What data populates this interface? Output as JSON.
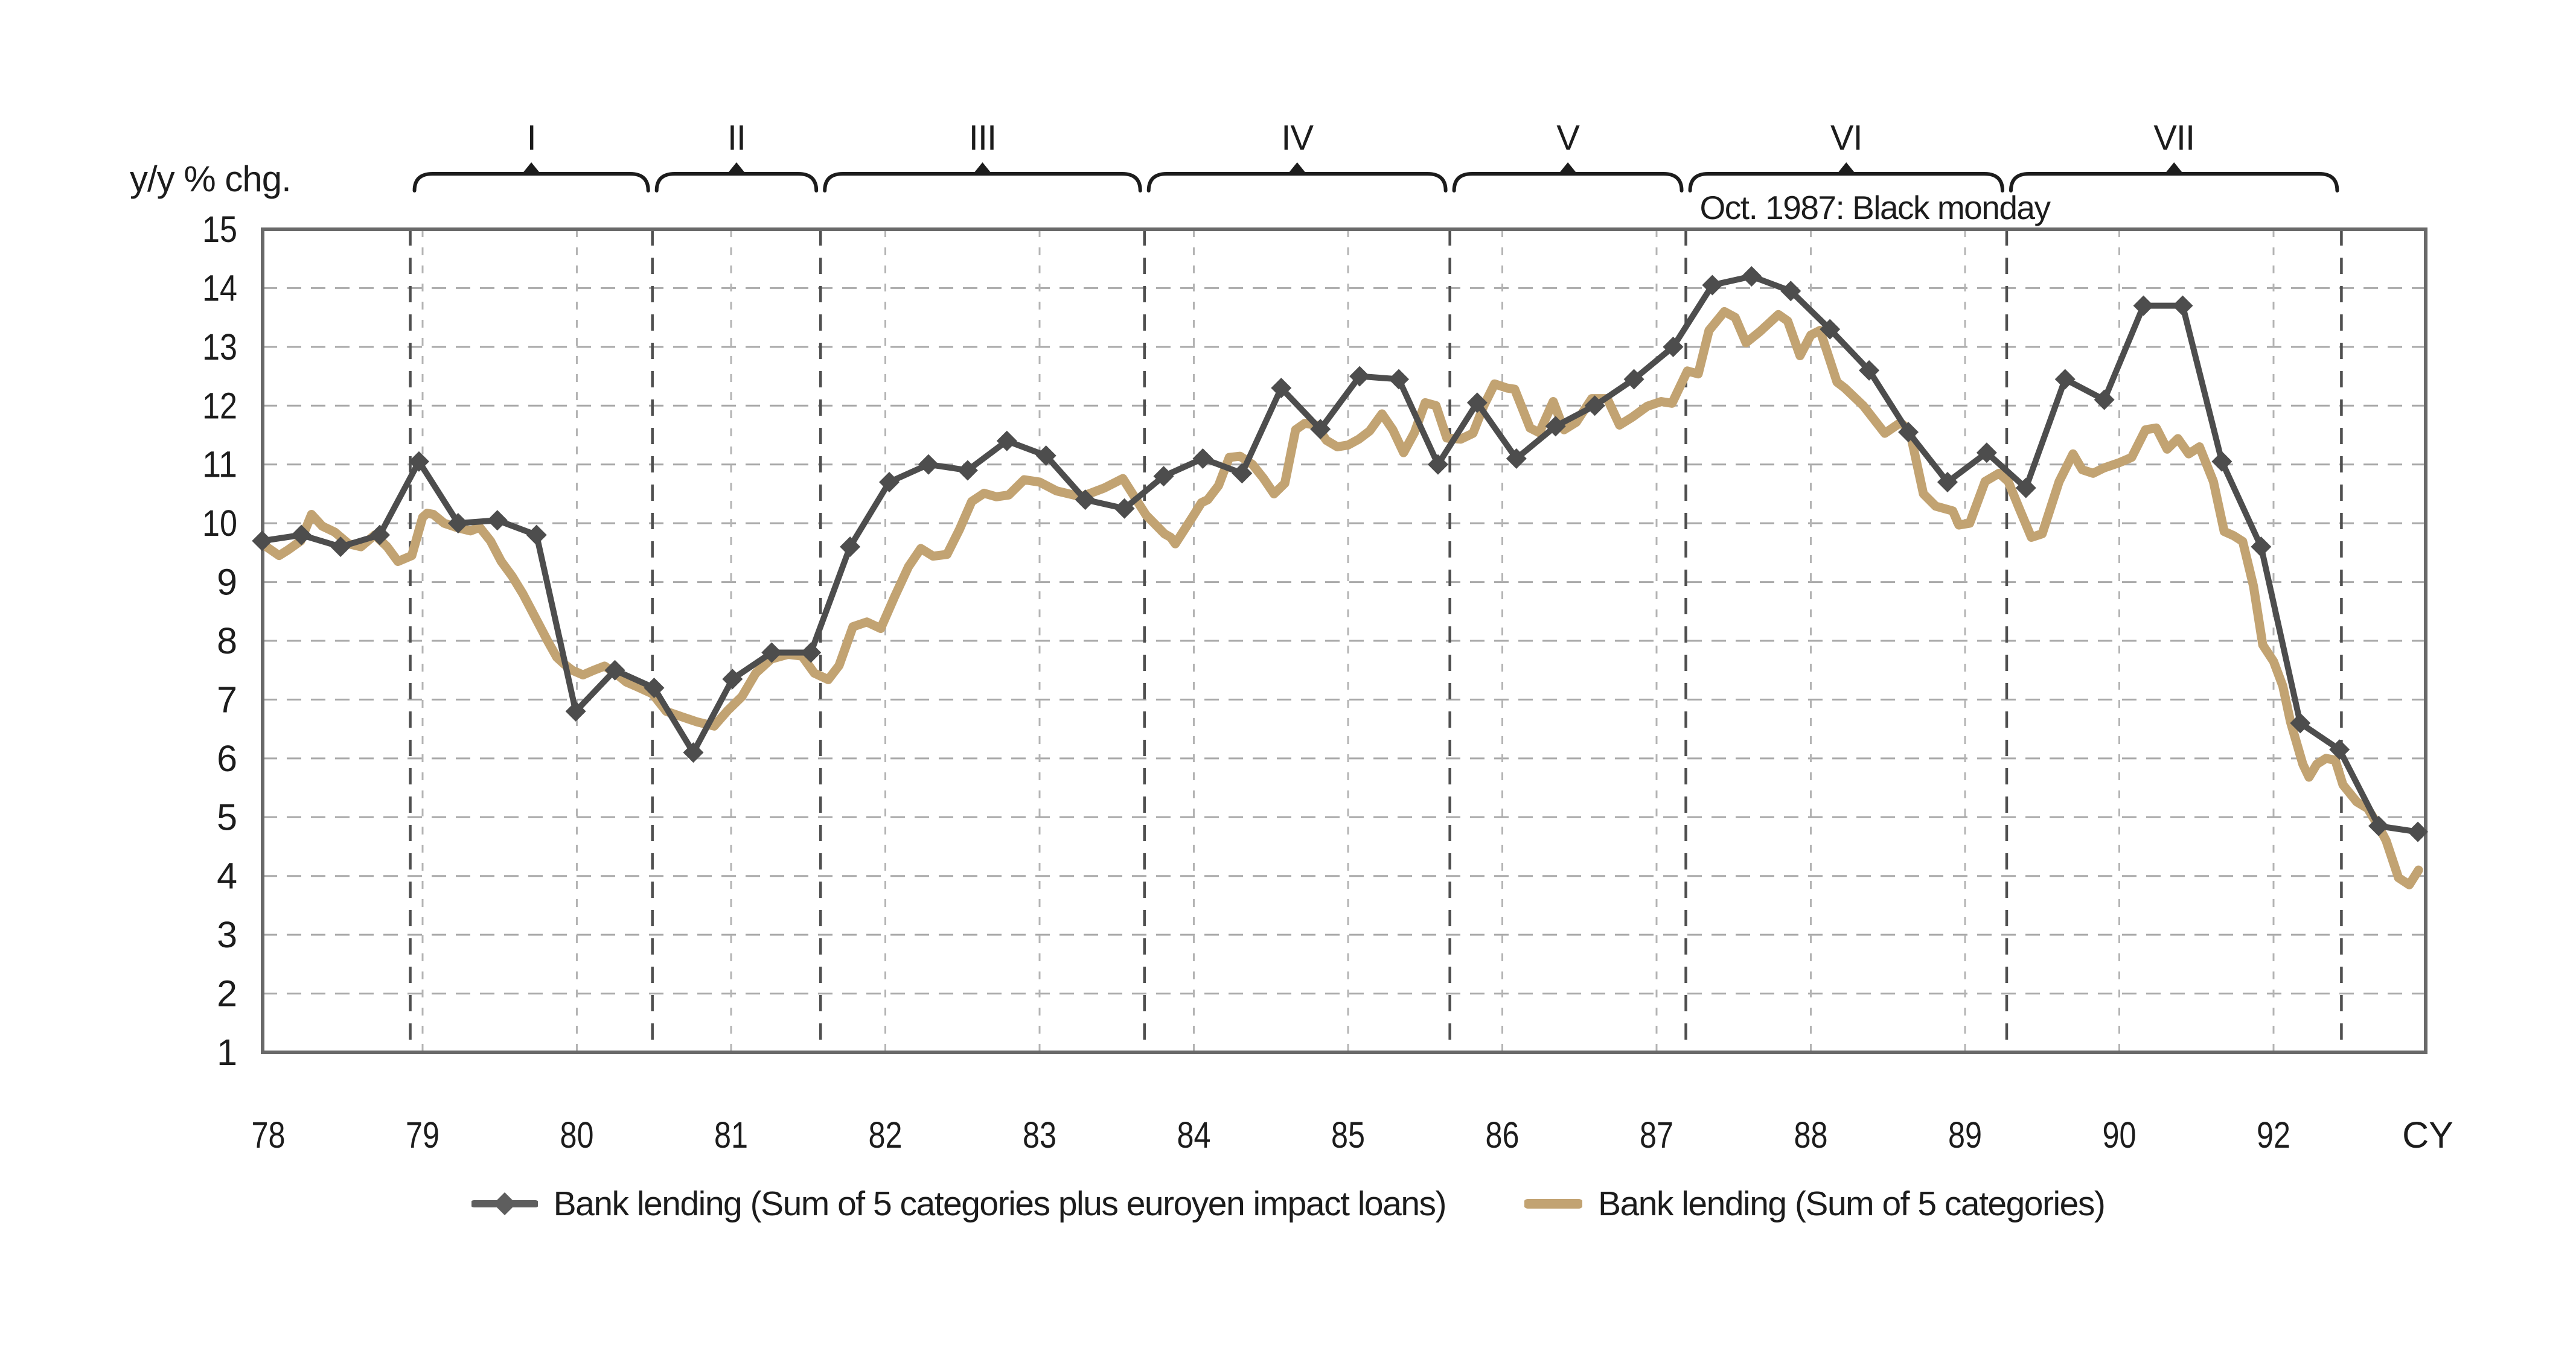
{
  "y_axis_title": "y/y % chg.",
  "legend": {
    "item1": "Bank lending (Sum of 5 categories plus euroyen impact loans)",
    "item2": "Bank lending (Sum of 5 categories)"
  },
  "chart_data": {
    "type": "line",
    "title": "",
    "ylabel": "y/y % chg.",
    "xlabel": "CY",
    "ylim": [
      1,
      15
    ],
    "y_ticks": [
      1,
      2,
      3,
      4,
      5,
      6,
      7,
      8,
      9,
      10,
      11,
      12,
      13,
      14,
      15
    ],
    "grid": "dashed horizontal + dashed vertical year lines",
    "legend_position": "bottom",
    "x_axis": {
      "note": "pos is axis position in evenly-spaced label units; label 92 sits one unit after 90 on this chart",
      "ticks": [
        {
          "pos": 78,
          "label": "78",
          "line": false
        },
        {
          "pos": 79,
          "label": "79",
          "line": true
        },
        {
          "pos": 80,
          "label": "80",
          "line": true
        },
        {
          "pos": 81,
          "label": "81",
          "line": true
        },
        {
          "pos": 82,
          "label": "82",
          "line": true
        },
        {
          "pos": 83,
          "label": "83",
          "line": true
        },
        {
          "pos": 84,
          "label": "84",
          "line": true
        },
        {
          "pos": 85,
          "label": "85",
          "line": true
        },
        {
          "pos": 86,
          "label": "86",
          "line": true
        },
        {
          "pos": 87,
          "label": "87",
          "line": true
        },
        {
          "pos": 88,
          "label": "88",
          "line": true
        },
        {
          "pos": 89,
          "label": "89",
          "line": true
        },
        {
          "pos": 90,
          "label": "90",
          "line": true
        },
        {
          "pos": 91,
          "label": "92",
          "line": true
        },
        {
          "pos": 92,
          "label": "CY",
          "line": false
        }
      ]
    },
    "periods": [
      {
        "label": "I",
        "from": 78.92,
        "to": 80.49
      },
      {
        "label": "II",
        "from": 80.49,
        "to": 81.58
      },
      {
        "label": "III",
        "from": 81.58,
        "to": 83.68
      },
      {
        "label": "IV",
        "from": 83.68,
        "to": 85.66
      },
      {
        "label": "V",
        "from": 85.66,
        "to": 87.19
      },
      {
        "label": "VI",
        "from": 87.19,
        "to": 89.27
      },
      {
        "label": "VII",
        "from": 89.27,
        "to": 91.44
      }
    ],
    "annotation": {
      "text": "Oct. 1987: Black monday",
      "pos": 87.28,
      "value_y": "above plot, under brace row"
    },
    "series": [
      {
        "name": "Bank lending (Sum of 5 categories plus euroyen impact loans)",
        "color": "#4d4d4d",
        "marker": "diamond",
        "t_start": 77.96,
        "t_step": 0.2541,
        "values": [
          9.7,
          9.8,
          9.6,
          9.8,
          11.05,
          10.0,
          10.05,
          9.8,
          6.8,
          7.5,
          7.2,
          6.1,
          7.35,
          7.8,
          7.8,
          9.6,
          10.7,
          11.0,
          10.9,
          11.4,
          11.15,
          10.4,
          10.25,
          10.8,
          11.1,
          10.85,
          12.3,
          11.6,
          12.5,
          12.45,
          11.0,
          12.05,
          11.1,
          11.65,
          12.0,
          12.45,
          13.0,
          14.05,
          14.2,
          13.95,
          13.3,
          12.6,
          11.55,
          10.7,
          11.2,
          10.6,
          12.45,
          12.1,
          13.7,
          13.7,
          11.05,
          9.6,
          6.6,
          6.15,
          4.85,
          4.75
        ]
      },
      {
        "name": "Bank lending (Sum of 5 categories)",
        "color": "#c2a372",
        "marker": "none",
        "points": [
          [
            77.96,
            9.65
          ],
          [
            78.07,
            9.45
          ],
          [
            78.13,
            9.55
          ],
          [
            78.21,
            9.7
          ],
          [
            78.28,
            10.15
          ],
          [
            78.35,
            9.95
          ],
          [
            78.43,
            9.85
          ],
          [
            78.52,
            9.65
          ],
          [
            78.6,
            9.6
          ],
          [
            78.69,
            9.8
          ],
          [
            78.77,
            9.6
          ],
          [
            78.84,
            9.35
          ],
          [
            78.93,
            9.45
          ],
          [
            79.0,
            10.1
          ],
          [
            79.03,
            10.17
          ],
          [
            79.07,
            10.15
          ],
          [
            79.14,
            10.0
          ],
          [
            79.23,
            9.92
          ],
          [
            79.31,
            9.87
          ],
          [
            79.37,
            9.93
          ],
          [
            79.44,
            9.7
          ],
          [
            79.51,
            9.35
          ],
          [
            79.58,
            9.1
          ],
          [
            79.65,
            8.8
          ],
          [
            79.7,
            8.55
          ],
          [
            79.76,
            8.25
          ],
          [
            79.81,
            8.0
          ],
          [
            79.87,
            7.72
          ],
          [
            79.92,
            7.6
          ],
          [
            79.97,
            7.5
          ],
          [
            80.04,
            7.42
          ],
          [
            80.11,
            7.5
          ],
          [
            80.18,
            7.57
          ],
          [
            80.25,
            7.45
          ],
          [
            80.32,
            7.3
          ],
          [
            80.39,
            7.22
          ],
          [
            80.49,
            7.1
          ],
          [
            80.58,
            6.8
          ],
          [
            80.69,
            6.7
          ],
          [
            80.78,
            6.62
          ],
          [
            80.89,
            6.55
          ],
          [
            80.98,
            6.82
          ],
          [
            81.07,
            7.05
          ],
          [
            81.16,
            7.45
          ],
          [
            81.26,
            7.69
          ],
          [
            81.37,
            7.77
          ],
          [
            81.46,
            7.74
          ],
          [
            81.54,
            7.45
          ],
          [
            81.63,
            7.34
          ],
          [
            81.7,
            7.58
          ],
          [
            81.79,
            8.24
          ],
          [
            81.88,
            8.32
          ],
          [
            81.97,
            8.21
          ],
          [
            82.06,
            8.75
          ],
          [
            82.15,
            9.26
          ],
          [
            82.23,
            9.57
          ],
          [
            82.31,
            9.44
          ],
          [
            82.4,
            9.47
          ],
          [
            82.48,
            9.89
          ],
          [
            82.56,
            10.37
          ],
          [
            82.64,
            10.51
          ],
          [
            82.72,
            10.45
          ],
          [
            82.8,
            10.48
          ],
          [
            82.9,
            10.74
          ],
          [
            83.0,
            10.7
          ],
          [
            83.11,
            10.55
          ],
          [
            83.27,
            10.45
          ],
          [
            83.42,
            10.6
          ],
          [
            83.54,
            10.76
          ],
          [
            83.69,
            10.14
          ],
          [
            83.81,
            9.82
          ],
          [
            83.85,
            9.76
          ],
          [
            83.88,
            9.65
          ],
          [
            83.99,
            10.1
          ],
          [
            84.05,
            10.35
          ],
          [
            84.09,
            10.4
          ],
          [
            84.16,
            10.64
          ],
          [
            84.23,
            11.12
          ],
          [
            84.3,
            11.14
          ],
          [
            84.38,
            11.0
          ],
          [
            84.45,
            10.77
          ],
          [
            84.52,
            10.5
          ],
          [
            84.59,
            10.68
          ],
          [
            84.66,
            11.59
          ],
          [
            84.72,
            11.7
          ],
          [
            84.79,
            11.67
          ],
          [
            84.86,
            11.41
          ],
          [
            84.93,
            11.3
          ],
          [
            85.0,
            11.33
          ],
          [
            85.07,
            11.43
          ],
          [
            85.14,
            11.57
          ],
          [
            85.22,
            11.86
          ],
          [
            85.29,
            11.59
          ],
          [
            85.36,
            11.2
          ],
          [
            85.43,
            11.54
          ],
          [
            85.5,
            12.05
          ],
          [
            85.57,
            12.0
          ],
          [
            85.64,
            11.45
          ],
          [
            85.73,
            11.43
          ],
          [
            85.81,
            11.53
          ],
          [
            85.88,
            12.0
          ],
          [
            85.95,
            12.37
          ],
          [
            86.03,
            12.3
          ],
          [
            86.08,
            12.28
          ],
          [
            86.18,
            11.62
          ],
          [
            86.24,
            11.54
          ],
          [
            86.33,
            12.07
          ],
          [
            86.4,
            11.59
          ],
          [
            86.48,
            11.72
          ],
          [
            86.58,
            12.12
          ],
          [
            86.68,
            12.12
          ],
          [
            86.76,
            11.67
          ],
          [
            86.84,
            11.8
          ],
          [
            86.94,
            11.99
          ],
          [
            87.03,
            12.07
          ],
          [
            87.1,
            12.04
          ],
          [
            87.2,
            12.59
          ],
          [
            87.27,
            12.54
          ],
          [
            87.34,
            13.28
          ],
          [
            87.44,
            13.6
          ],
          [
            87.51,
            13.5
          ],
          [
            87.58,
            13.07
          ],
          [
            87.67,
            13.26
          ],
          [
            87.79,
            13.55
          ],
          [
            87.85,
            13.44
          ],
          [
            87.93,
            12.85
          ],
          [
            88.0,
            13.2
          ],
          [
            88.06,
            13.28
          ],
          [
            88.17,
            12.4
          ],
          [
            88.22,
            12.3
          ],
          [
            88.34,
            12.0
          ],
          [
            88.48,
            11.53
          ],
          [
            88.58,
            11.71
          ],
          [
            88.64,
            11.59
          ],
          [
            88.73,
            10.5
          ],
          [
            88.81,
            10.29
          ],
          [
            88.92,
            10.21
          ],
          [
            88.96,
            9.97
          ],
          [
            89.03,
            10.0
          ],
          [
            89.13,
            10.71
          ],
          [
            89.22,
            10.85
          ],
          [
            89.28,
            10.71
          ],
          [
            89.35,
            10.26
          ],
          [
            89.43,
            9.76
          ],
          [
            89.5,
            9.82
          ],
          [
            89.61,
            10.71
          ],
          [
            89.7,
            11.18
          ],
          [
            89.76,
            10.91
          ],
          [
            89.83,
            10.85
          ],
          [
            89.9,
            10.94
          ],
          [
            90.0,
            11.03
          ],
          [
            90.08,
            11.12
          ],
          [
            90.17,
            11.59
          ],
          [
            90.24,
            11.62
          ],
          [
            90.31,
            11.26
          ],
          [
            90.38,
            11.44
          ],
          [
            90.45,
            11.18
          ],
          [
            90.52,
            11.3
          ],
          [
            90.61,
            10.71
          ],
          [
            90.68,
            9.86
          ],
          [
            90.74,
            9.79
          ],
          [
            90.8,
            9.69
          ],
          [
            90.87,
            8.93
          ],
          [
            90.93,
            7.93
          ],
          [
            91.0,
            7.65
          ],
          [
            91.06,
            7.23
          ],
          [
            91.11,
            6.62
          ],
          [
            91.19,
            5.9
          ],
          [
            91.23,
            5.68
          ],
          [
            91.28,
            5.9
          ],
          [
            91.34,
            6.0
          ],
          [
            91.4,
            5.97
          ],
          [
            91.45,
            5.55
          ],
          [
            91.54,
            5.26
          ],
          [
            91.61,
            5.15
          ],
          [
            91.68,
            4.85
          ],
          [
            91.73,
            4.6
          ],
          [
            91.81,
            3.97
          ],
          [
            91.88,
            3.85
          ],
          [
            91.94,
            4.1
          ]
        ]
      }
    ],
    "colors": {
      "series_dark": "#4d4d4d",
      "series_tan": "#c2a372",
      "h_grid": "#a9a9a9",
      "year_line": "#b4b4b4",
      "period_boundary": "#4f4f4f",
      "frame": "#696969",
      "text": "#1c1c1c"
    }
  }
}
